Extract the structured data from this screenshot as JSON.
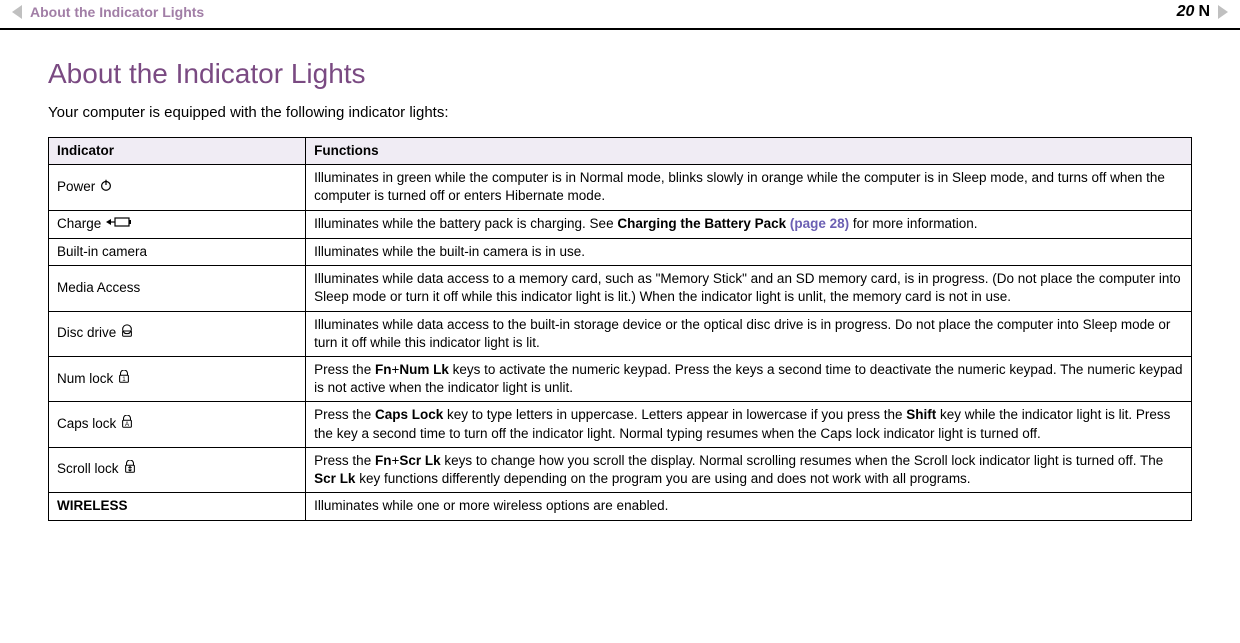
{
  "header": {
    "breadcrumb": "About the Indicator Lights",
    "page_number": "20"
  },
  "page": {
    "title": "About the Indicator Lights",
    "title_color": "#7a4a82",
    "intro": "Your computer is equipped with the following indicator lights:"
  },
  "table": {
    "header_bg": "#f0ecf4",
    "border_color": "#000000",
    "columns": [
      "Indicator",
      "Functions"
    ],
    "column_widths": [
      "22.5%",
      "77.5%"
    ],
    "fontsize": 13.5,
    "rows": [
      {
        "indicator": "Power",
        "indicator_bold": false,
        "icon": "power-icon",
        "function_parts": [
          {
            "t": "Illuminates in green while the computer is in Normal mode, blinks slowly in orange while the computer is in Sleep mode, and turns off when the computer is turned off or enters Hibernate mode."
          }
        ]
      },
      {
        "indicator": "Charge",
        "indicator_bold": false,
        "icon": "charge-icon",
        "function_parts": [
          {
            "t": "Illuminates while the battery pack is charging. See "
          },
          {
            "t": "Charging the Battery Pack ",
            "bold": true
          },
          {
            "t": "(page 28)",
            "link": true
          },
          {
            "t": " for more information."
          }
        ]
      },
      {
        "indicator": "Built-in camera",
        "indicator_bold": false,
        "icon": null,
        "function_parts": [
          {
            "t": "Illuminates while the built-in camera is in use."
          }
        ]
      },
      {
        "indicator": "Media Access",
        "indicator_bold": false,
        "icon": null,
        "function_parts": [
          {
            "t": "Illuminates while data access to a memory card, such as \"Memory Stick\" and an SD memory card, is in progress. (Do not place the computer into Sleep mode or turn it off while this indicator light is lit.) When the indicator light is unlit, the memory card is not in use."
          }
        ]
      },
      {
        "indicator": "Disc drive",
        "indicator_bold": false,
        "icon": "disc-icon",
        "function_parts": [
          {
            "t": "Illuminates while data access to the built-in storage device or the optical disc drive is in progress. Do not place the computer into Sleep mode or turn it off while this indicator light is lit."
          }
        ]
      },
      {
        "indicator": "Num lock",
        "indicator_bold": false,
        "icon": "numlock-icon",
        "function_parts": [
          {
            "t": "Press the "
          },
          {
            "t": "Fn",
            "bold": true
          },
          {
            "t": "+"
          },
          {
            "t": "Num Lk",
            "bold": true
          },
          {
            "t": " keys to activate the numeric keypad. Press the keys a second time to deactivate the numeric keypad. The numeric keypad is not active when the indicator light is unlit."
          }
        ]
      },
      {
        "indicator": "Caps lock",
        "indicator_bold": false,
        "icon": "capslock-icon",
        "function_parts": [
          {
            "t": "Press the "
          },
          {
            "t": "Caps Lock",
            "bold": true
          },
          {
            "t": " key to type letters in uppercase. Letters appear in lowercase if you press the "
          },
          {
            "t": "Shift",
            "bold": true
          },
          {
            "t": " key while the indicator light is lit. Press the key a second time to turn off the indicator light. Normal typing resumes when the Caps lock indicator light is turned off."
          }
        ]
      },
      {
        "indicator": "Scroll lock",
        "indicator_bold": false,
        "icon": "scrolllock-icon",
        "function_parts": [
          {
            "t": "Press the "
          },
          {
            "t": "Fn",
            "bold": true
          },
          {
            "t": "+"
          },
          {
            "t": "Scr Lk",
            "bold": true
          },
          {
            "t": " keys to change how you scroll the display. Normal scrolling resumes when the Scroll lock indicator light is turned off. The "
          },
          {
            "t": "Scr Lk",
            "bold": true
          },
          {
            "t": " key functions differently depending on the program you are using and does not work with all programs."
          }
        ]
      },
      {
        "indicator": "WIRELESS",
        "indicator_bold": true,
        "icon": null,
        "function_parts": [
          {
            "t": "Illuminates while one or more wireless options are enabled."
          }
        ]
      }
    ]
  },
  "icons": {
    "stroke": "#000000",
    "size": 14
  }
}
